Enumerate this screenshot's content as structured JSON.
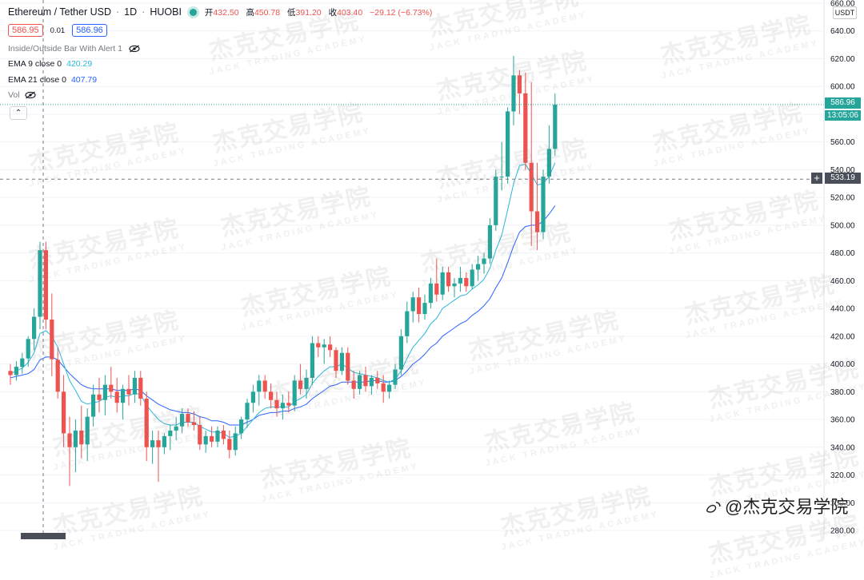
{
  "header": {
    "symbol": "Ethereum / Tether USD",
    "interval": "1D",
    "exchange": "HUOBI",
    "ohlc": {
      "open_label": "开",
      "open": "432.50",
      "high_label": "高",
      "high": "450.78",
      "low_label": "低",
      "low": "391.20",
      "close_label": "收",
      "close": "403.40",
      "change": "−29.12 (−6.73%)"
    }
  },
  "trade": {
    "sell": "586.95",
    "spread": "0.01",
    "buy": "586.96"
  },
  "indicators": {
    "alert": "Inside/Outside Bar With Alert 1",
    "ema9_label": "EMA 9 close 0",
    "ema9_value": "420.29",
    "ema21_label": "EMA 21 close 0",
    "ema21_value": "407.79",
    "vol": "Vol"
  },
  "axis": {
    "unit": "USDT",
    "last_price": "586.96",
    "countdown": "13:05:06",
    "crosshair_price": "533.19"
  },
  "watermark": {
    "cn": "杰克交易学院",
    "en": "JACK TRADING ACADEMY"
  },
  "brand": "@杰克交易学院",
  "colors": {
    "up": "#26a69a",
    "down": "#ef5350",
    "ema9": "#2bb7da",
    "ema21": "#2962ff"
  },
  "chart_data": {
    "type": "candlestick",
    "y_ticks": [
      280,
      300,
      320,
      340,
      360,
      380,
      400,
      420,
      440,
      460,
      480,
      500,
      520,
      540,
      560,
      580,
      600,
      620,
      640,
      660
    ],
    "ylim": [
      278,
      662
    ],
    "candles": [
      {
        "o": 395,
        "h": 400,
        "l": 385,
        "c": 392
      },
      {
        "o": 392,
        "h": 402,
        "l": 388,
        "c": 398
      },
      {
        "o": 398,
        "h": 408,
        "l": 393,
        "c": 404
      },
      {
        "o": 404,
        "h": 420,
        "l": 398,
        "c": 418
      },
      {
        "o": 418,
        "h": 440,
        "l": 410,
        "c": 434
      },
      {
        "o": 434,
        "h": 488,
        "l": 425,
        "c": 482
      },
      {
        "o": 482,
        "h": 488,
        "l": 425,
        "c": 432
      },
      {
        "o": 432,
        "h": 450.78,
        "l": 391.2,
        "c": 403.4
      },
      {
        "o": 403,
        "h": 412,
        "l": 375,
        "c": 380
      },
      {
        "o": 380,
        "h": 392,
        "l": 340,
        "c": 350
      },
      {
        "o": 350,
        "h": 362,
        "l": 312,
        "c": 340
      },
      {
        "o": 340,
        "h": 360,
        "l": 322,
        "c": 352
      },
      {
        "o": 352,
        "h": 370,
        "l": 332,
        "c": 342
      },
      {
        "o": 342,
        "h": 368,
        "l": 330,
        "c": 362
      },
      {
        "o": 362,
        "h": 385,
        "l": 355,
        "c": 378
      },
      {
        "o": 378,
        "h": 390,
        "l": 365,
        "c": 374
      },
      {
        "o": 374,
        "h": 392,
        "l": 363,
        "c": 385
      },
      {
        "o": 385,
        "h": 398,
        "l": 375,
        "c": 380
      },
      {
        "o": 380,
        "h": 390,
        "l": 365,
        "c": 372
      },
      {
        "o": 372,
        "h": 385,
        "l": 360,
        "c": 382
      },
      {
        "o": 382,
        "h": 392,
        "l": 370,
        "c": 378
      },
      {
        "o": 378,
        "h": 395,
        "l": 372,
        "c": 390
      },
      {
        "o": 390,
        "h": 395,
        "l": 370,
        "c": 375
      },
      {
        "o": 375,
        "h": 380,
        "l": 330,
        "c": 340
      },
      {
        "o": 340,
        "h": 352,
        "l": 328,
        "c": 345
      },
      {
        "o": 345,
        "h": 352,
        "l": 315,
        "c": 340
      },
      {
        "o": 340,
        "h": 350,
        "l": 335,
        "c": 348
      },
      {
        "o": 348,
        "h": 356,
        "l": 338,
        "c": 352
      },
      {
        "o": 352,
        "h": 362,
        "l": 345,
        "c": 355
      },
      {
        "o": 355,
        "h": 368,
        "l": 350,
        "c": 364
      },
      {
        "o": 364,
        "h": 368,
        "l": 355,
        "c": 358
      },
      {
        "o": 358,
        "h": 366,
        "l": 352,
        "c": 356
      },
      {
        "o": 356,
        "h": 362,
        "l": 338,
        "c": 342
      },
      {
        "o": 342,
        "h": 352,
        "l": 336,
        "c": 348
      },
      {
        "o": 348,
        "h": 355,
        "l": 340,
        "c": 344
      },
      {
        "o": 344,
        "h": 355,
        "l": 340,
        "c": 352
      },
      {
        "o": 352,
        "h": 356,
        "l": 342,
        "c": 346
      },
      {
        "o": 346,
        "h": 352,
        "l": 332,
        "c": 338
      },
      {
        "o": 338,
        "h": 355,
        "l": 334,
        "c": 350
      },
      {
        "o": 350,
        "h": 362,
        "l": 346,
        "c": 360
      },
      {
        "o": 360,
        "h": 375,
        "l": 354,
        "c": 372
      },
      {
        "o": 372,
        "h": 385,
        "l": 365,
        "c": 380
      },
      {
        "o": 380,
        "h": 392,
        "l": 370,
        "c": 388
      },
      {
        "o": 388,
        "h": 392,
        "l": 375,
        "c": 380
      },
      {
        "o": 380,
        "h": 386,
        "l": 368,
        "c": 374
      },
      {
        "o": 374,
        "h": 380,
        "l": 362,
        "c": 368
      },
      {
        "o": 368,
        "h": 378,
        "l": 360,
        "c": 372
      },
      {
        "o": 372,
        "h": 380,
        "l": 365,
        "c": 370
      },
      {
        "o": 370,
        "h": 392,
        "l": 366,
        "c": 388
      },
      {
        "o": 388,
        "h": 400,
        "l": 378,
        "c": 382
      },
      {
        "o": 382,
        "h": 396,
        "l": 375,
        "c": 390
      },
      {
        "o": 390,
        "h": 420,
        "l": 385,
        "c": 415
      },
      {
        "o": 415,
        "h": 420,
        "l": 405,
        "c": 412
      },
      {
        "o": 412,
        "h": 418,
        "l": 400,
        "c": 414
      },
      {
        "o": 414,
        "h": 420,
        "l": 405,
        "c": 410
      },
      {
        "o": 410,
        "h": 412,
        "l": 390,
        "c": 395
      },
      {
        "o": 395,
        "h": 412,
        "l": 392,
        "c": 408
      },
      {
        "o": 408,
        "h": 412,
        "l": 385,
        "c": 388
      },
      {
        "o": 388,
        "h": 395,
        "l": 375,
        "c": 382
      },
      {
        "o": 382,
        "h": 395,
        "l": 378,
        "c": 392
      },
      {
        "o": 392,
        "h": 398,
        "l": 380,
        "c": 384
      },
      {
        "o": 384,
        "h": 392,
        "l": 378,
        "c": 390
      },
      {
        "o": 390,
        "h": 395,
        "l": 382,
        "c": 386
      },
      {
        "o": 386,
        "h": 392,
        "l": 372,
        "c": 380
      },
      {
        "o": 380,
        "h": 388,
        "l": 375,
        "c": 385
      },
      {
        "o": 385,
        "h": 400,
        "l": 382,
        "c": 396
      },
      {
        "o": 396,
        "h": 425,
        "l": 392,
        "c": 420
      },
      {
        "o": 420,
        "h": 445,
        "l": 415,
        "c": 438
      },
      {
        "o": 438,
        "h": 452,
        "l": 430,
        "c": 448
      },
      {
        "o": 448,
        "h": 455,
        "l": 430,
        "c": 436
      },
      {
        "o": 436,
        "h": 450,
        "l": 432,
        "c": 444
      },
      {
        "o": 444,
        "h": 462,
        "l": 440,
        "c": 458
      },
      {
        "o": 458,
        "h": 476,
        "l": 445,
        "c": 450
      },
      {
        "o": 450,
        "h": 470,
        "l": 446,
        "c": 466
      },
      {
        "o": 466,
        "h": 470,
        "l": 452,
        "c": 456
      },
      {
        "o": 456,
        "h": 462,
        "l": 448,
        "c": 458
      },
      {
        "o": 458,
        "h": 470,
        "l": 452,
        "c": 462
      },
      {
        "o": 462,
        "h": 466,
        "l": 452,
        "c": 456
      },
      {
        "o": 456,
        "h": 472,
        "l": 454,
        "c": 468
      },
      {
        "o": 468,
        "h": 478,
        "l": 460,
        "c": 472
      },
      {
        "o": 472,
        "h": 480,
        "l": 465,
        "c": 476
      },
      {
        "o": 476,
        "h": 505,
        "l": 472,
        "c": 500
      },
      {
        "o": 500,
        "h": 540,
        "l": 496,
        "c": 535
      },
      {
        "o": 535,
        "h": 560,
        "l": 525,
        "c": 535
      },
      {
        "o": 535,
        "h": 585,
        "l": 530,
        "c": 582
      },
      {
        "o": 582,
        "h": 622,
        "l": 572,
        "c": 608
      },
      {
        "o": 608,
        "h": 612,
        "l": 580,
        "c": 595
      },
      {
        "o": 595,
        "h": 610,
        "l": 540,
        "c": 545
      },
      {
        "o": 545,
        "h": 603,
        "l": 485,
        "c": 510
      },
      {
        "o": 510,
        "h": 545,
        "l": 482,
        "c": 495
      },
      {
        "o": 495,
        "h": 540,
        "l": 490,
        "c": 535
      },
      {
        "o": 535,
        "h": 572,
        "l": 530,
        "c": 555
      },
      {
        "o": 555,
        "h": 595,
        "l": 550,
        "c": 586.96
      }
    ],
    "ema9": [
      393,
      395,
      397,
      401,
      408,
      422,
      424,
      420,
      412,
      400,
      388,
      381,
      373,
      371,
      372,
      373,
      376,
      377,
      376,
      377,
      377,
      379,
      378,
      370,
      365,
      360,
      357,
      356,
      356,
      358,
      358,
      358,
      355,
      353,
      351,
      351,
      350,
      347,
      348,
      350,
      355,
      360,
      365,
      368,
      369,
      369,
      369,
      369,
      373,
      375,
      378,
      386,
      391,
      395,
      398,
      398,
      400,
      397,
      394,
      393,
      392,
      391,
      390,
      388,
      387,
      389,
      395,
      404,
      412,
      417,
      422,
      429,
      433,
      440,
      443,
      446,
      449,
      450,
      454,
      457,
      461,
      469,
      482,
      493,
      511,
      530,
      543,
      544,
      537,
      529,
      530,
      535,
      545
    ],
    "ema21": [
      390,
      391,
      392,
      393,
      396,
      403,
      405,
      405,
      403,
      398,
      393,
      389,
      385,
      383,
      382,
      382,
      382,
      382,
      381,
      381,
      381,
      382,
      381,
      377,
      374,
      371,
      369,
      367,
      366,
      365,
      365,
      364,
      362,
      361,
      359,
      359,
      358,
      356,
      356,
      356,
      358,
      360,
      363,
      364,
      365,
      365,
      366,
      366,
      368,
      369,
      371,
      375,
      378,
      381,
      384,
      385,
      387,
      387,
      387,
      387,
      387,
      388,
      388,
      387,
      387,
      388,
      391,
      395,
      400,
      403,
      407,
      412,
      415,
      420,
      423,
      426,
      429,
      431,
      435,
      438,
      442,
      447,
      455,
      462,
      473,
      485,
      495,
      499,
      500,
      500,
      503,
      508,
      514
    ]
  }
}
